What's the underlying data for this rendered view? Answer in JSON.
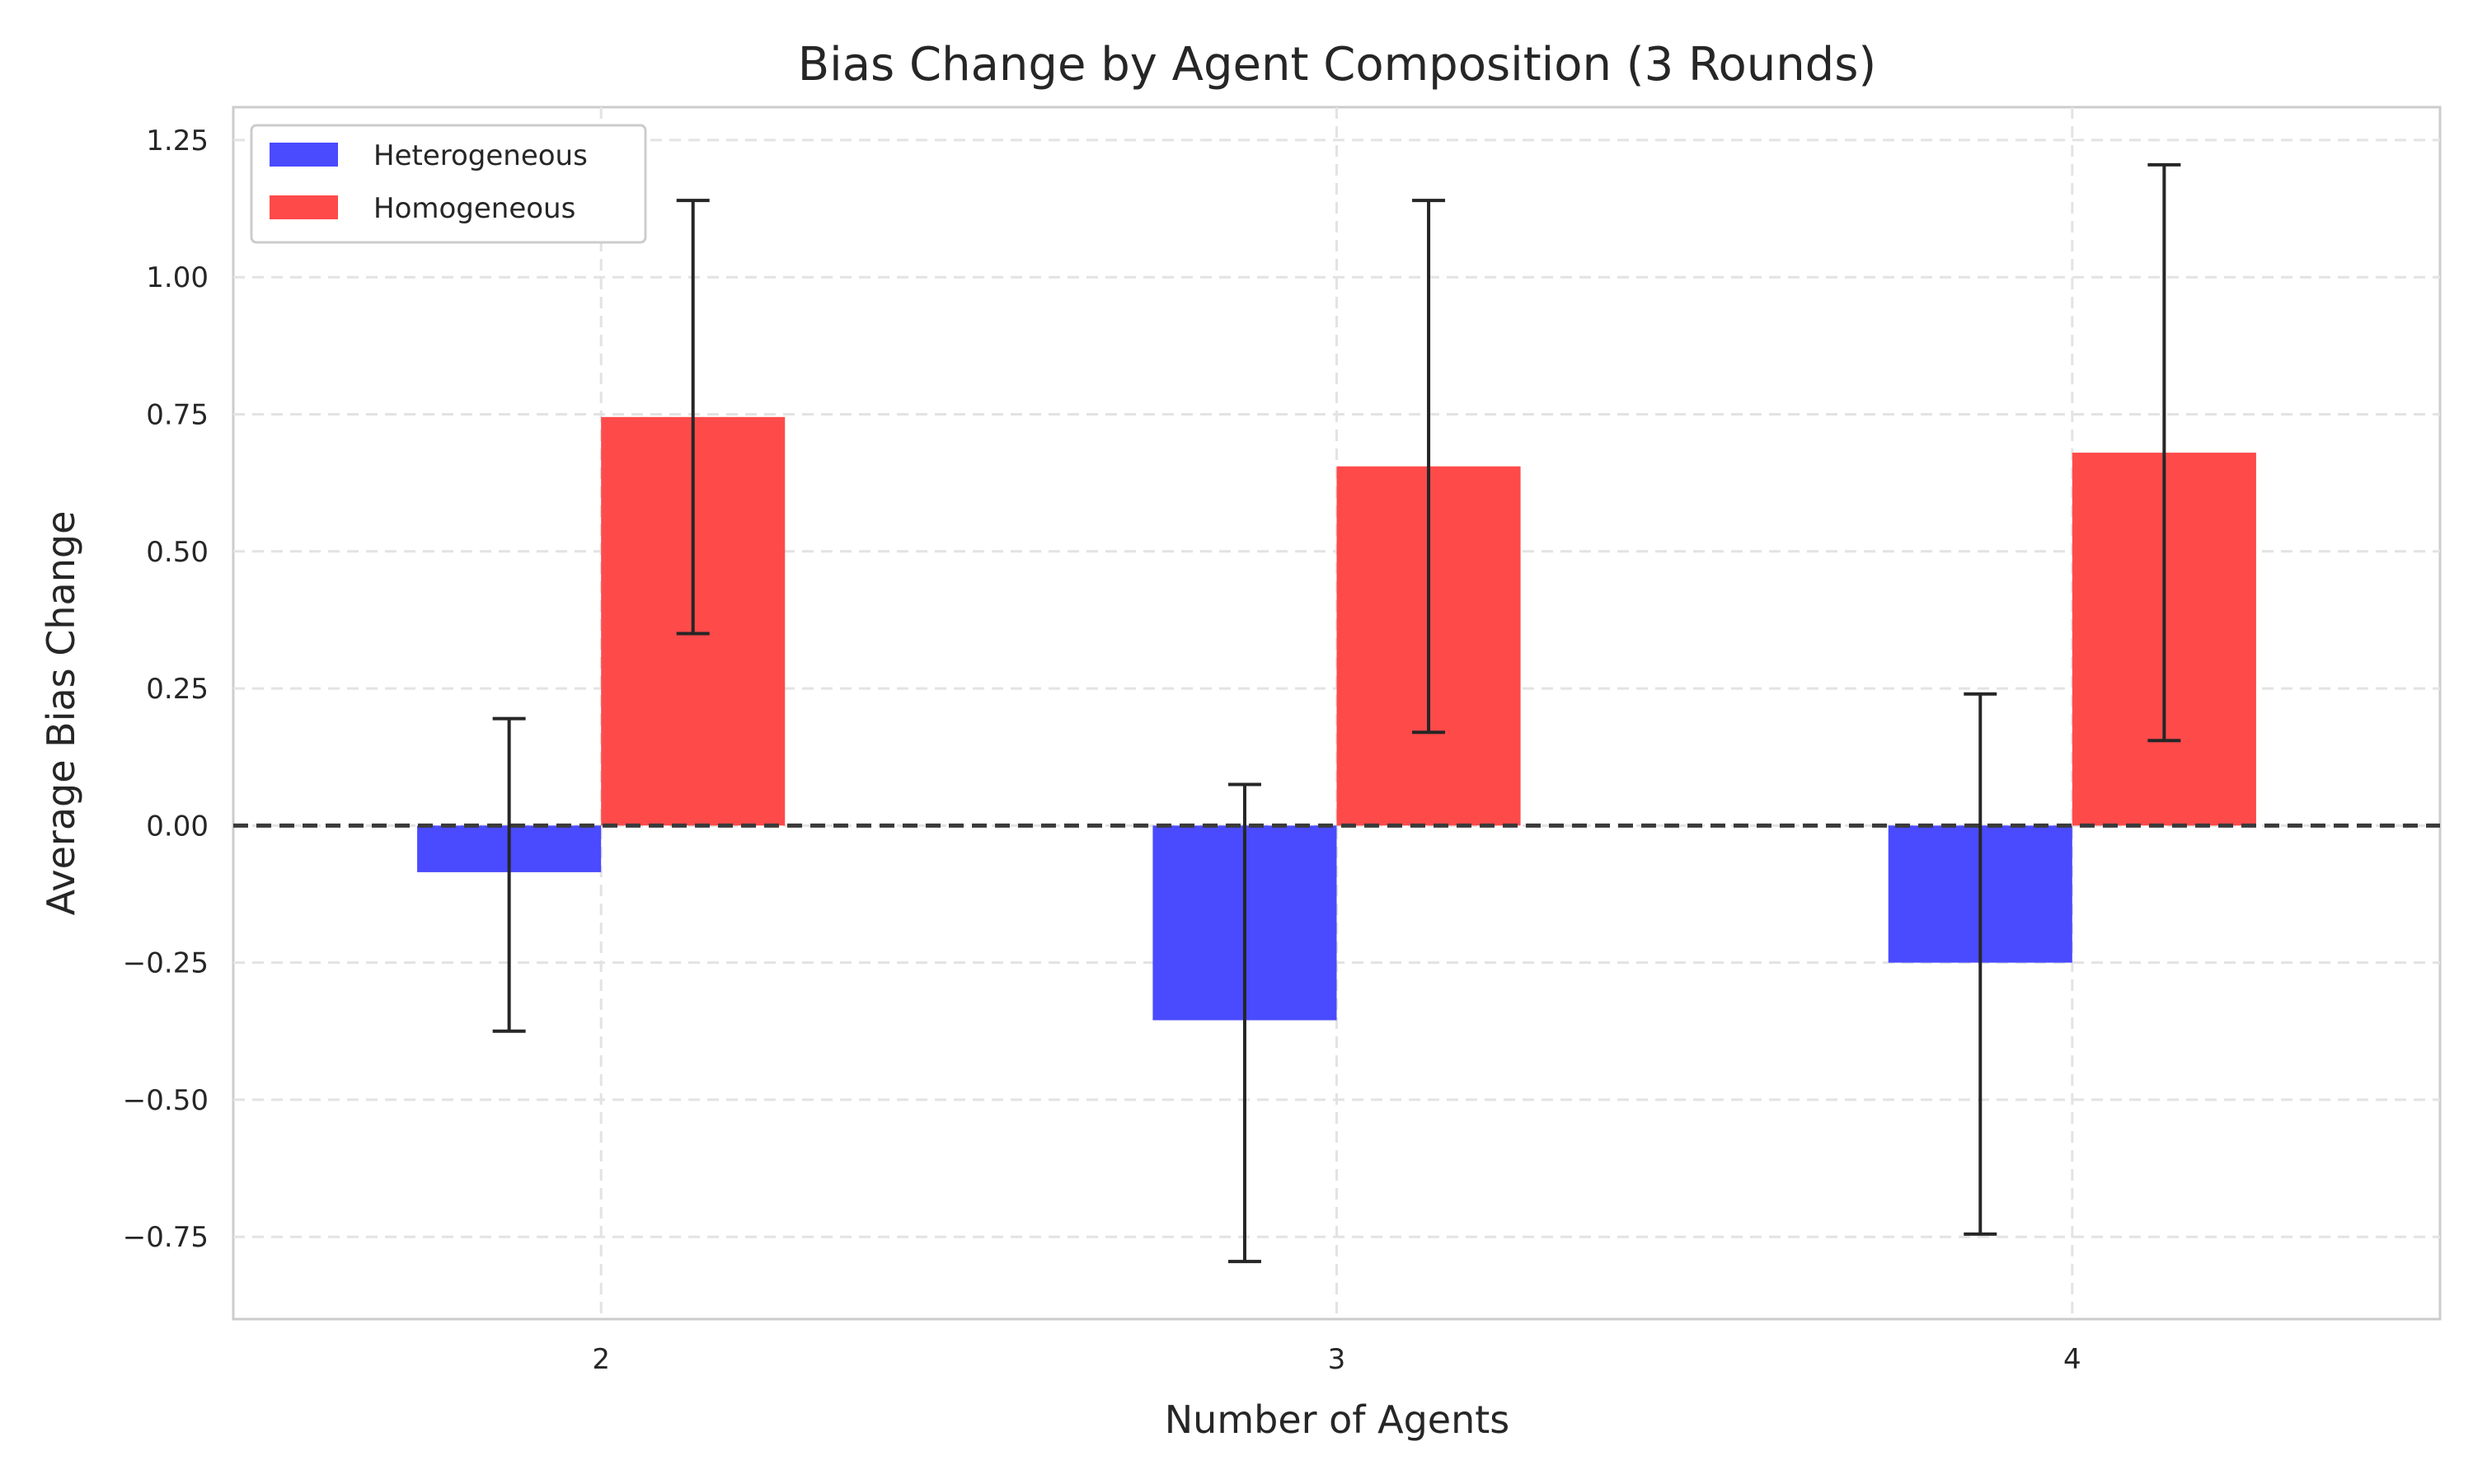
{
  "chart_data": {
    "type": "bar",
    "title": "Bias Change by Agent Composition (3 Rounds)",
    "xlabel": "Number of Agents",
    "ylabel": "Average Bias Change",
    "categories": [
      "2",
      "3",
      "4"
    ],
    "series": [
      {
        "name": "Heterogeneous",
        "color": "#4a4aff",
        "values": [
          -0.085,
          -0.355,
          -0.25
        ],
        "error_low": [
          -0.375,
          -0.795,
          -0.745
        ],
        "error_high": [
          0.195,
          0.075,
          0.24
        ]
      },
      {
        "name": "Homogeneous",
        "color": "#ff4a4a",
        "values": [
          0.745,
          0.655,
          0.68
        ],
        "error_low": [
          0.35,
          0.17,
          0.155
        ],
        "error_high": [
          1.14,
          1.14,
          1.205
        ]
      }
    ],
    "ylim": [
      -0.9,
      1.31
    ],
    "yticks": [
      1.25,
      1.0,
      0.75,
      0.5,
      0.25,
      0.0,
      -0.25,
      -0.5,
      -0.75
    ],
    "ytick_labels": [
      "1.25",
      "1.00",
      "0.75",
      "0.50",
      "0.25",
      "0.00",
      "−0.25",
      "−0.50",
      "−0.75"
    ],
    "reference_line": 0.0,
    "grid": true,
    "legend_position": "top-left"
  }
}
